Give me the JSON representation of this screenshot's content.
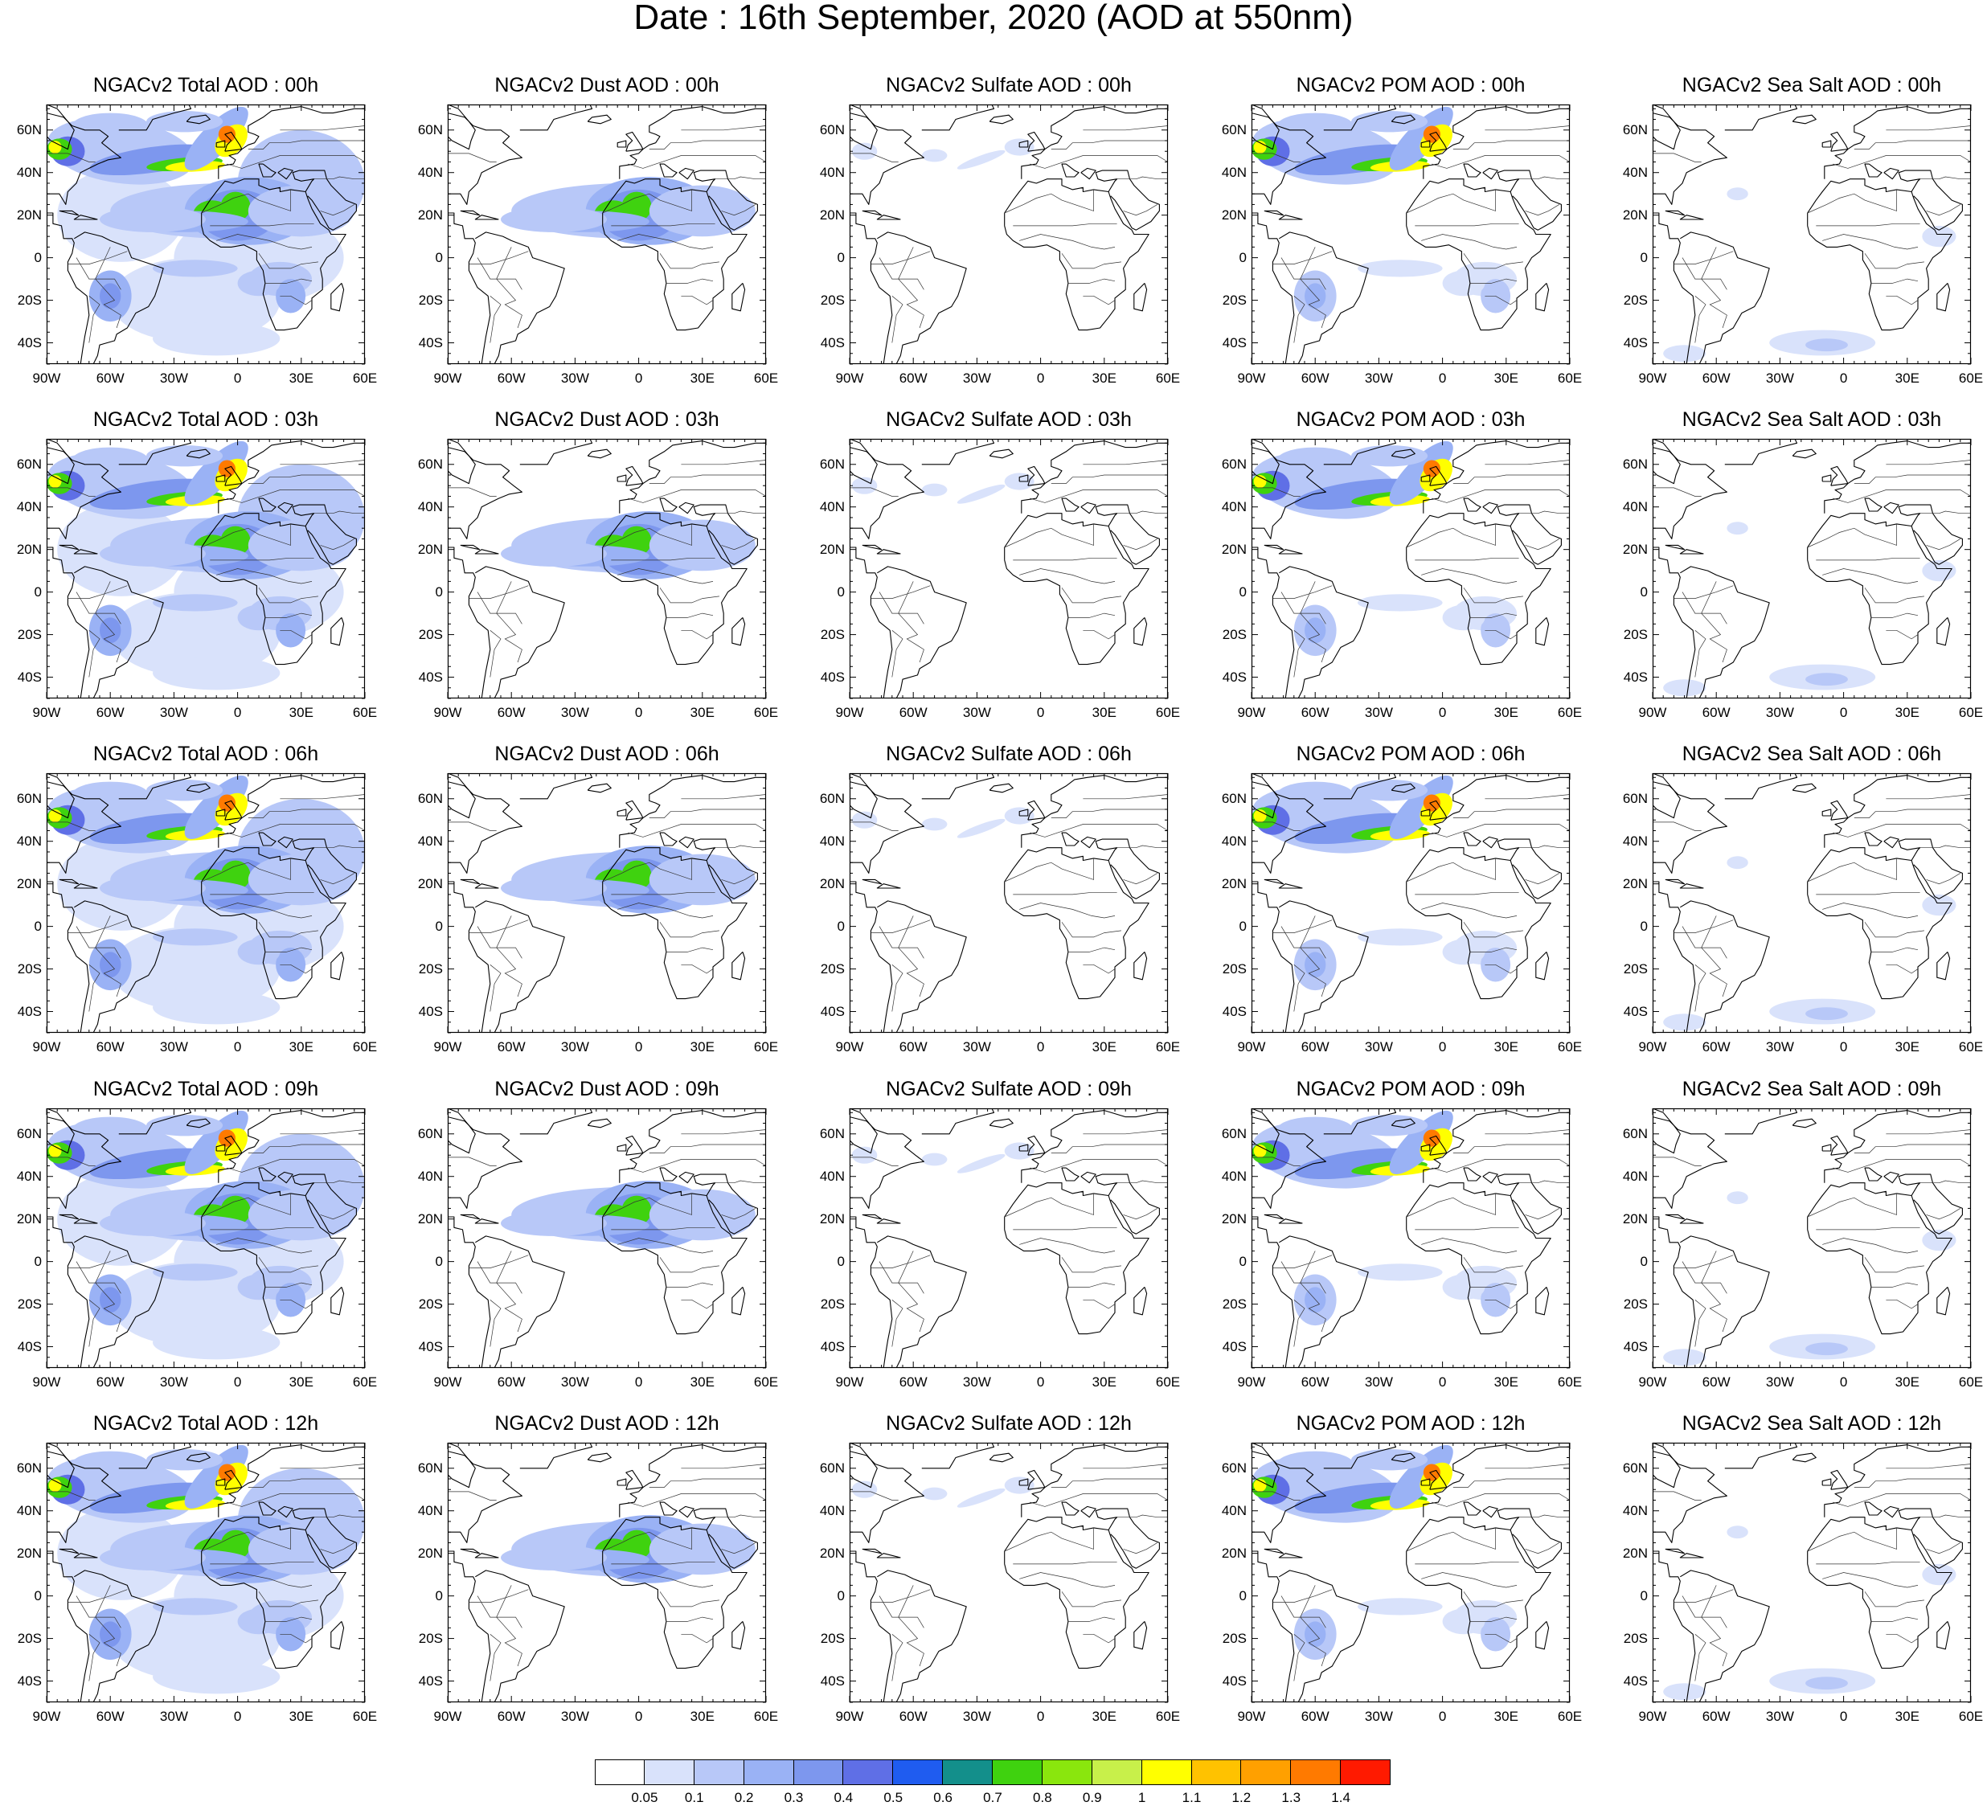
{
  "title": "Date : 16th September, 2020 (AOD at 550nm)",
  "rows": [
    {
      "hour": "00h",
      "titles": [
        "NGACv2 Total AOD : 00h",
        "NGACv2 Dust AOD : 00h",
        "NGACv2 Sulfate AOD : 00h",
        "NGACv2 POM AOD : 00h",
        "NGACv2 Sea Salt AOD : 00h"
      ]
    },
    {
      "hour": "03h",
      "titles": [
        "NGACv2 Total AOD : 03h",
        "NGACv2 Dust AOD : 03h",
        "NGACv2 Sulfate AOD : 03h",
        "NGACv2 POM AOD : 03h",
        "NGACv2 Sea Salt AOD : 03h"
      ]
    },
    {
      "hour": "06h",
      "titles": [
        "NGACv2 Total AOD : 06h",
        "NGACv2 Dust AOD : 06h",
        "NGACv2 Sulfate AOD : 06h",
        "NGACv2 POM AOD : 06h",
        "NGACv2 Sea Salt AOD : 06h"
      ]
    },
    {
      "hour": "09h",
      "titles": [
        "NGACv2 Total AOD : 09h",
        "NGACv2 Dust AOD : 09h",
        "NGACv2 Sulfate AOD : 09h",
        "NGACv2 POM AOD : 09h",
        "NGACv2 Sea Salt  AOD : 09h"
      ]
    },
    {
      "hour": "12h",
      "titles": [
        "NGACv2 Total AOD  : 12h",
        "NGACv2 Dust AOD : 12h",
        "NGACv2 Sulfate AOD : 12h",
        "NGACv2 POM  AOD : 12h",
        "NGACv2 Sea Salt  AOD : 12h"
      ]
    }
  ],
  "lat_ticks": [
    "60N",
    "40N",
    "20N",
    "0",
    "20S",
    "40S"
  ],
  "lon_ticks": [
    "90W",
    "60W",
    "30W",
    "0",
    "30E",
    "60E"
  ],
  "map_extent": {
    "lon": [
      -90,
      60
    ],
    "lat": [
      -50,
      72
    ]
  },
  "colorbar": {
    "labels": [
      "0.05",
      "0.1",
      "0.2",
      "0.3",
      "0.4",
      "0.5",
      "0.6",
      "0.7",
      "0.8",
      "0.9",
      "1",
      "1.1",
      "1.2",
      "1.3",
      "1.4"
    ],
    "colors": [
      "#ffffff",
      "#d9e2fb",
      "#b8c8f8",
      "#9ab2f5",
      "#7d97ee",
      "#5f6fe6",
      "#1f5cf0",
      "#138f8b",
      "#3fd20f",
      "#8ae60d",
      "#c8f04a",
      "#ffff00",
      "#ffc200",
      "#ffa000",
      "#ff7a00",
      "#ff1a00"
    ]
  },
  "species": [
    "total",
    "dust",
    "sulfate",
    "pom",
    "seasalt"
  ]
}
